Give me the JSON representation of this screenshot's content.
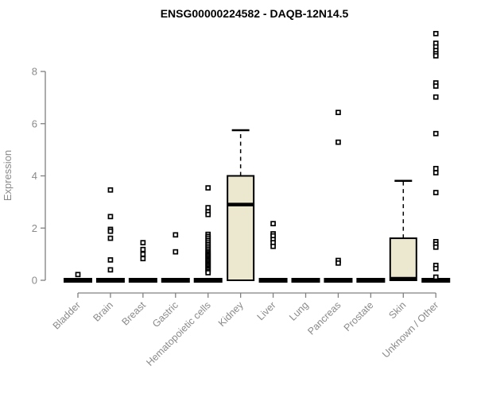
{
  "chart_data": {
    "type": "boxplot",
    "title": "ENSG00000224582 - DAQB-12N14.5",
    "ylabel": "Expression",
    "xlabel": "",
    "yticks": [
      0,
      2,
      4,
      6,
      8
    ],
    "ylim": [
      0,
      9.6
    ],
    "grid": false,
    "legend": "none",
    "colors": {
      "box_fill": "#ece8cf",
      "box_stroke": "#000000",
      "axis": "#808080",
      "label_text": "#8a8a8a",
      "title_text": "#000000",
      "outlier_fill": "#ffffff"
    },
    "categories": [
      "Bladder",
      "Brain",
      "Breast",
      "Gastric",
      "Hematopoietic cells",
      "Kidney",
      "Liver",
      "Lung",
      "Pancreas",
      "Prostate",
      "Skin",
      "Unknown / Other"
    ],
    "boxes": [
      {
        "category": "Bladder",
        "whisker_low": 0,
        "q1": 0,
        "median": 0,
        "q3": 0,
        "whisker_high": 0,
        "outliers": [
          0.22
        ]
      },
      {
        "category": "Brain",
        "whisker_low": 0,
        "q1": 0,
        "median": 0,
        "q3": 0,
        "whisker_high": 0,
        "outliers": [
          3.46,
          2.44,
          1.95,
          1.88,
          1.61,
          0.78,
          0.4
        ]
      },
      {
        "category": "Breast",
        "whisker_low": 0,
        "q1": 0,
        "median": 0,
        "q3": 0,
        "whisker_high": 0,
        "outliers": [
          1.44,
          1.18,
          1.0,
          0.83
        ]
      },
      {
        "category": "Gastric",
        "whisker_low": 0,
        "q1": 0,
        "median": 0,
        "q3": 0,
        "whisker_high": 0,
        "outliers": [
          1.74,
          1.09
        ]
      },
      {
        "category": "Hematopoietic cells",
        "whisker_low": 0,
        "q1": 0,
        "median": 0,
        "q3": 0,
        "whisker_high": 0,
        "outliers": [
          3.54,
          2.78,
          2.62,
          2.52,
          1.76,
          1.68,
          1.61,
          1.53,
          1.46,
          1.38,
          1.31,
          1.24,
          1.17,
          1.1,
          1.05,
          1.0,
          0.95,
          0.9,
          0.85,
          0.8,
          0.75,
          0.7,
          0.65,
          0.6,
          0.55,
          0.5,
          0.45,
          0.4,
          0.34,
          0.29
        ]
      },
      {
        "category": "Kidney",
        "whisker_low": 0,
        "q1": 0,
        "median": 2.9,
        "q3": 4.0,
        "whisker_high": 5.75,
        "outliers": []
      },
      {
        "category": "Liver",
        "whisker_low": 0,
        "q1": 0,
        "median": 0,
        "q3": 0,
        "whisker_high": 0,
        "outliers": [
          2.17,
          1.78,
          1.7,
          1.56,
          1.44,
          1.3
        ]
      },
      {
        "category": "Lung",
        "whisker_low": 0,
        "q1": 0,
        "median": 0,
        "q3": 0,
        "whisker_high": 0,
        "outliers": []
      },
      {
        "category": "Pancreas",
        "whisker_low": 0,
        "q1": 0,
        "median": 0,
        "q3": 0,
        "whisker_high": 0,
        "outliers": [
          6.43,
          5.29,
          0.76,
          0.66
        ]
      },
      {
        "category": "Prostate",
        "whisker_low": 0,
        "q1": 0,
        "median": 0,
        "q3": 0,
        "whisker_high": 0,
        "outliers": []
      },
      {
        "category": "Skin",
        "whisker_low": 0,
        "q1": 0,
        "median": 0.06,
        "q3": 1.61,
        "whisker_high": 3.81,
        "outliers": []
      },
      {
        "category": "Unknown / Other",
        "whisker_low": 0,
        "q1": 0,
        "median": 0,
        "q3": 0,
        "whisker_high": 0,
        "outliers": [
          9.45,
          9.08,
          8.94,
          8.8,
          8.68,
          8.6,
          7.56,
          7.44,
          7.02,
          5.62,
          4.28,
          4.12,
          3.36,
          1.48,
          1.38,
          1.27,
          0.57,
          0.45,
          0.12
        ]
      }
    ]
  }
}
